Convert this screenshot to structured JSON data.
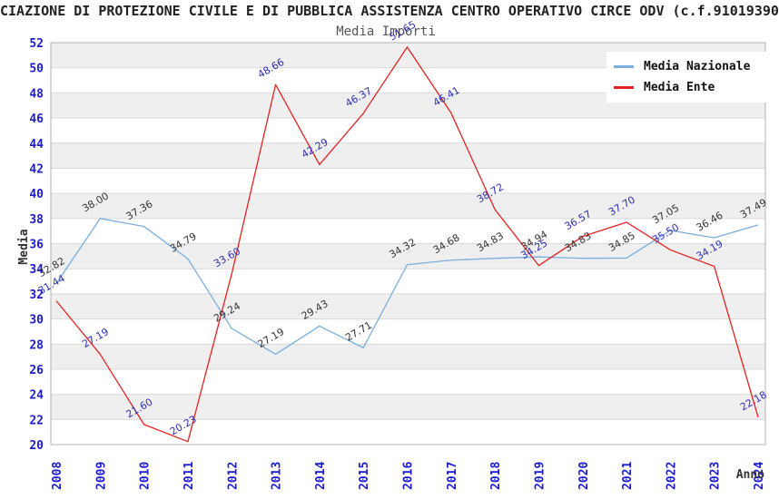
{
  "header": {
    "title": "CIAZIONE DI PROTEZIONE CIVILE E DI PUBBLICA ASSISTENZA CENTRO OPERATIVO CIRCE ODV (c.f.91019390",
    "subtitle": "Media Importi"
  },
  "axes": {
    "y_title": "Media",
    "x_title": "Anno",
    "y_ticks": [
      52,
      50,
      48,
      46,
      44,
      42,
      40,
      38,
      36,
      34,
      32,
      30,
      28,
      26,
      24,
      22,
      20
    ]
  },
  "chart_data": {
    "type": "line",
    "title": "Media Importi",
    "xlabel": "Anno",
    "ylabel": "Media",
    "x": [
      "2008",
      "2009",
      "2010",
      "2011",
      "2012",
      "2013",
      "2014",
      "2015",
      "2016",
      "2017",
      "2018",
      "2019",
      "2020",
      "2021",
      "2022",
      "2023",
      "2024"
    ],
    "ylim": [
      20,
      52
    ],
    "ytick_step": 2,
    "grid": "horizontal",
    "background_bands": true,
    "legend_position": "top-right",
    "series": [
      {
        "name": "Media Nazionale",
        "color": "#79aede",
        "label_color": "#333333",
        "values": [
          32.82,
          38.0,
          37.36,
          34.79,
          29.24,
          27.19,
          29.43,
          27.71,
          34.32,
          34.68,
          34.83,
          34.94,
          34.83,
          34.85,
          37.05,
          36.46,
          37.49
        ]
      },
      {
        "name": "Media Ente",
        "color": "#e32222",
        "label_color": "#2d2db4",
        "values": [
          31.44,
          27.19,
          21.6,
          20.23,
          33.6,
          48.66,
          42.29,
          46.37,
          51.65,
          46.41,
          38.72,
          34.25,
          36.57,
          37.7,
          35.5,
          34.19,
          22.18
        ]
      }
    ]
  },
  "colors": {
    "tick": "#1b1bd1",
    "band": "#efefef",
    "gridline": "#d9d9d9",
    "border": "#b3b3b3",
    "axis_title": "#333333"
  }
}
